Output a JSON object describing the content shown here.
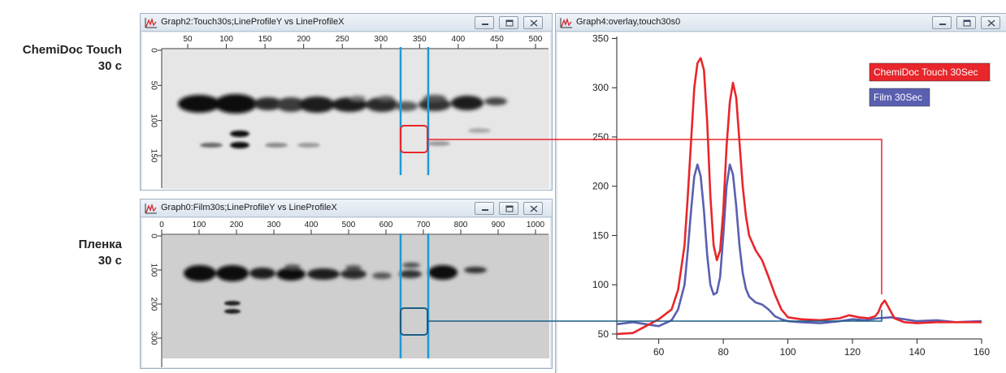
{
  "labels": {
    "touch_line1": "ChemiDoc Touch",
    "touch_line2": "30 c",
    "film_line1": "Пленка",
    "film_line2": "30 c"
  },
  "windows": {
    "touch": {
      "title": "Graph2:Touch30s;LineProfileY vs LineProfileX",
      "x_ticks": [
        "50",
        "100",
        "150",
        "200",
        "250",
        "300",
        "350",
        "400",
        "450",
        "500"
      ],
      "y_ticks": [
        "0",
        "50",
        "100",
        "150"
      ]
    },
    "film": {
      "title": "Graph0:Film30s;LineProfileY vs LineProfileX",
      "x_ticks": [
        "0",
        "100",
        "200",
        "300",
        "400",
        "500",
        "600",
        "700",
        "800",
        "900",
        "1000"
      ],
      "y_ticks": [
        "0",
        "100",
        "200",
        "300"
      ]
    },
    "overlay": {
      "title": "Graph4:overlay,touch30s0"
    }
  },
  "icons": [
    "graph-app-icon",
    "minimize-icon",
    "maximize-icon",
    "close-icon"
  ],
  "colors": {
    "touch_series": "#e8262b",
    "film_series": "#5a5fb0",
    "lane_marker": "#1e9ad6",
    "touch_box": "#e8262b",
    "film_box": "#1c5e86"
  },
  "chart_data": {
    "type": "line",
    "title": "",
    "xlabel": "",
    "ylabel": "",
    "xlim": [
      47,
      160
    ],
    "ylim": [
      45,
      352
    ],
    "x_ticks": [
      "60",
      "80",
      "100",
      "120",
      "140",
      "160"
    ],
    "y_ticks": [
      "50",
      "100",
      "150",
      "200",
      "250",
      "300",
      "350"
    ],
    "grid": false,
    "legend_position": "top-right",
    "series": [
      {
        "name": "ChemiDoc Touch 30Sec",
        "color": "#e8262b",
        "x": [
          47,
          52,
          56,
          60,
          64,
          66,
          68,
          69,
          70,
          71,
          72,
          73,
          74,
          75,
          76,
          77,
          78,
          79,
          80,
          81,
          82,
          83,
          84,
          85,
          86,
          87,
          88,
          90,
          92,
          94,
          96,
          98,
          100,
          104,
          110,
          116,
          119,
          122,
          125,
          127,
          128,
          129,
          130,
          131,
          133,
          136,
          140,
          146,
          152,
          160
        ],
        "y": [
          50,
          51,
          58,
          65,
          75,
          95,
          140,
          190,
          245,
          300,
          325,
          330,
          318,
          265,
          190,
          140,
          125,
          135,
          175,
          240,
          285,
          305,
          290,
          245,
          200,
          170,
          150,
          135,
          125,
          108,
          90,
          75,
          67,
          65,
          64,
          66,
          69,
          67,
          66,
          68,
          72,
          80,
          84,
          78,
          66,
          62,
          61,
          62,
          62,
          62
        ]
      },
      {
        "name": "Film 30Sec",
        "color": "#5a5fb0",
        "x": [
          47,
          52,
          56,
          60,
          64,
          66,
          68,
          69,
          70,
          71,
          72,
          73,
          74,
          75,
          76,
          77,
          78,
          79,
          80,
          81,
          82,
          83,
          84,
          85,
          86,
          87,
          88,
          90,
          92,
          94,
          96,
          98,
          100,
          104,
          110,
          116,
          120,
          124,
          128,
          132,
          136,
          140,
          146,
          152,
          160
        ],
        "y": [
          60,
          62,
          60,
          58,
          64,
          75,
          100,
          135,
          175,
          210,
          222,
          210,
          175,
          130,
          100,
          90,
          92,
          108,
          150,
          200,
          222,
          212,
          180,
          140,
          112,
          96,
          88,
          82,
          80,
          75,
          68,
          65,
          63,
          62,
          61,
          63,
          65,
          64,
          66,
          67,
          65,
          63,
          64,
          62,
          63
        ]
      }
    ]
  }
}
